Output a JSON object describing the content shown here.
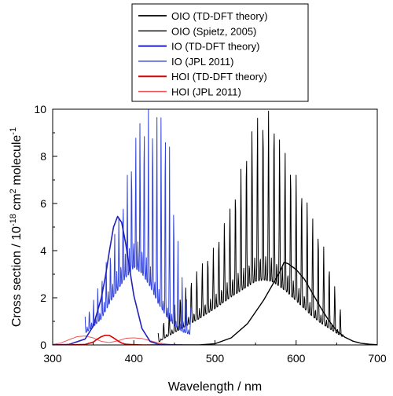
{
  "chart_data": {
    "type": "line",
    "xlabel": "Wavelength / nm",
    "ylabel": {
      "base": "Cross section / 10",
      "exp1": "-18",
      "mid": " cm",
      "exp2": "2",
      "tail": " molecule",
      "exp3": "-1"
    },
    "xlim": [
      300,
      700
    ],
    "ylim": [
      0,
      10
    ],
    "x_ticks": [
      300,
      400,
      500,
      600,
      700
    ],
    "y_ticks": [
      0,
      2,
      4,
      6,
      8,
      10
    ],
    "grid": false,
    "legend_position": "top-center",
    "series": [
      {
        "name": "OIO (TD-DFT theory)",
        "color": "#000000",
        "width": 1.4,
        "style": "smooth",
        "x": [
          420,
          440,
          460,
          480,
          500,
          520,
          540,
          560,
          570,
          580,
          585,
          590,
          600,
          610,
          620,
          630,
          640,
          650,
          660,
          670,
          680,
          690,
          700
        ],
        "y": [
          0.0,
          0.0,
          0.0,
          0.0,
          0.05,
          0.3,
          0.9,
          1.9,
          2.5,
          3.1,
          3.5,
          3.45,
          3.2,
          2.8,
          2.2,
          1.6,
          1.05,
          0.6,
          0.33,
          0.16,
          0.07,
          0.03,
          0.01
        ]
      },
      {
        "name": "OIO (Spietz, 2005)",
        "color": "#000000",
        "width": 1.0,
        "style": "spiky",
        "x_start": 430,
        "x_end": 658,
        "period": 6.8,
        "envelope_x": [
          430,
          440,
          460,
          480,
          500,
          520,
          540,
          550,
          560,
          570,
          580,
          590,
          600,
          610,
          620,
          630,
          640,
          650,
          658
        ],
        "envelope_y": [
          0.2,
          0.6,
          1.3,
          2.0,
          2.8,
          3.7,
          4.5,
          4.9,
          5.0,
          4.9,
          4.5,
          4.0,
          3.4,
          2.8,
          2.2,
          1.7,
          1.3,
          0.9,
          0.6
        ],
        "peak_x": [
          430,
          440,
          460,
          480,
          500,
          520,
          530,
          540,
          550,
          560,
          570,
          580,
          590,
          600,
          610,
          620,
          630,
          640,
          650,
          658
        ],
        "peak_y": [
          0.5,
          1.2,
          2.2,
          3.3,
          4.2,
          6.0,
          7.2,
          8.5,
          9.8,
          9.8,
          10.0,
          8.8,
          8.0,
          7.2,
          6.5,
          5.5,
          4.6,
          3.5,
          2.2,
          1.0
        ]
      },
      {
        "name": "IO (TD-DFT theory)",
        "color": "#2222bb",
        "width": 1.6,
        "style": "smooth",
        "x": [
          300,
          320,
          340,
          350,
          360,
          365,
          370,
          375,
          380,
          385,
          390,
          395,
          400,
          410,
          420,
          430,
          440,
          460
        ],
        "y": [
          0.0,
          0.02,
          0.25,
          0.8,
          2.0,
          2.9,
          4.0,
          5.0,
          5.45,
          5.2,
          4.3,
          3.2,
          2.1,
          0.7,
          0.15,
          0.03,
          0.0,
          0.0
        ]
      },
      {
        "name": "IO (JPL 2011)",
        "color": "#3344dd",
        "width": 1.0,
        "style": "spiky",
        "x_start": 340,
        "x_end": 470,
        "period": 5.2,
        "envelope_x": [
          340,
          350,
          360,
          370,
          380,
          390,
          395,
          400,
          410,
          420,
          430,
          440,
          450,
          460,
          470
        ],
        "envelope_y": [
          0.9,
          1.4,
          2.0,
          3.2,
          4.2,
          5.2,
          5.5,
          6.0,
          5.5,
          4.5,
          3.2,
          2.2,
          1.5,
          1.0,
          0.8
        ],
        "peak_x": [
          340,
          350,
          360,
          370,
          380,
          390,
          395,
          400,
          410,
          420,
          430,
          440,
          450,
          460,
          470
        ],
        "peak_y": [
          1.2,
          1.9,
          2.9,
          3.9,
          5.3,
          6.8,
          7.8,
          8.7,
          10.0,
          10.0,
          10.0,
          10.0,
          6.0,
          2.8,
          1.6
        ]
      },
      {
        "name": "HOI (TD-DFT theory)",
        "color": "#dd0000",
        "width": 1.6,
        "style": "smooth",
        "x": [
          300,
          320,
          340,
          350,
          355,
          360,
          365,
          370,
          375,
          380,
          385,
          390,
          400,
          410,
          420
        ],
        "y": [
          0.0,
          0.0,
          0.02,
          0.12,
          0.25,
          0.35,
          0.41,
          0.4,
          0.3,
          0.18,
          0.08,
          0.03,
          0.01,
          0.0,
          0.0
        ]
      },
      {
        "name": "HOI (JPL 2011)",
        "color": "#ee5555",
        "width": 1.0,
        "style": "smooth",
        "x": [
          300,
          310,
          320,
          330,
          340,
          350,
          360,
          370,
          380,
          390,
          400,
          410,
          420,
          430,
          440,
          450,
          460
        ],
        "y": [
          0.02,
          0.08,
          0.22,
          0.35,
          0.38,
          0.3,
          0.15,
          0.1,
          0.17,
          0.28,
          0.3,
          0.27,
          0.18,
          0.09,
          0.04,
          0.01,
          0.0
        ]
      }
    ]
  }
}
